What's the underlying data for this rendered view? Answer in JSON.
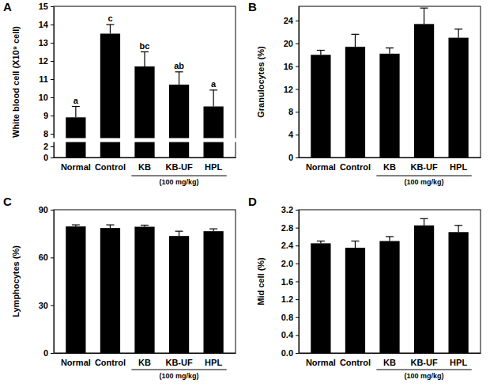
{
  "chart_data": [
    {
      "type": "bar",
      "title": "A",
      "y_label": "White blood cell (X10⁹ cell)",
      "categories": [
        "Normal",
        "Control",
        "KB",
        "KB-UF",
        "HPL"
      ],
      "values": [
        8.9,
        13.5,
        11.7,
        10.7,
        9.5
      ],
      "errors": [
        0.6,
        0.5,
        0.8,
        0.7,
        0.9
      ],
      "letters": [
        "a",
        "c",
        "bc",
        "ab",
        "a"
      ],
      "color": "#000000",
      "ylim": [
        0,
        15
      ],
      "ybreak": [
        2,
        8
      ],
      "yticks": [
        0,
        2,
        8,
        9,
        10,
        11,
        12,
        13,
        14,
        15
      ],
      "group": {
        "label": "(100 mg/kg)",
        "from": "KB",
        "to": "HPL"
      }
    },
    {
      "type": "bar",
      "title": "B",
      "y_label": "Granulocytes (%)",
      "categories": [
        "Normal",
        "Control",
        "KB",
        "KB-UF",
        "HPL"
      ],
      "values": [
        18.0,
        19.4,
        18.2,
        23.4,
        21.0
      ],
      "errors": [
        0.8,
        2.2,
        1.0,
        2.8,
        1.5
      ],
      "color": "#000000",
      "ylim": [
        0,
        26.5
      ],
      "yticks": [
        0,
        4,
        8,
        12,
        16,
        20,
        24
      ],
      "group": {
        "label": "(100 mg/kg)",
        "from": "KB",
        "to": "HPL"
      }
    },
    {
      "type": "bar",
      "title": "C",
      "y_label": "Lymphocytes (%)",
      "categories": [
        "Normal",
        "Control",
        "KB",
        "KB-UF",
        "HPL"
      ],
      "values": [
        79.5,
        78.5,
        79.3,
        73.5,
        76.5
      ],
      "errors": [
        1.0,
        2.0,
        1.0,
        3.0,
        1.5
      ],
      "color": "#000000",
      "ylim": [
        0,
        90
      ],
      "yticks": [
        0,
        30,
        60,
        90
      ],
      "group": {
        "label": "(100 mg/kg)",
        "from": "KB",
        "to": "HPL"
      }
    },
    {
      "type": "bar",
      "title": "D",
      "y_label": "Mid cell (%)",
      "categories": [
        "Normal",
        "Control",
        "KB",
        "KB-UF",
        "HPL"
      ],
      "values": [
        2.45,
        2.35,
        2.5,
        2.85,
        2.7
      ],
      "errors": [
        0.05,
        0.15,
        0.1,
        0.15,
        0.15
      ],
      "color": "#000000",
      "ylim": [
        0,
        3.2
      ],
      "yticks": [
        {
          "value": 0,
          "label": "0.0"
        },
        0.4,
        0.8,
        1.2,
        1.6,
        {
          "value": 2,
          "label": "2.0"
        },
        2.4,
        2.8,
        3.2
      ],
      "group": {
        "label": "(100 mg/kg)",
        "from": "KB",
        "to": "HPL"
      }
    }
  ]
}
